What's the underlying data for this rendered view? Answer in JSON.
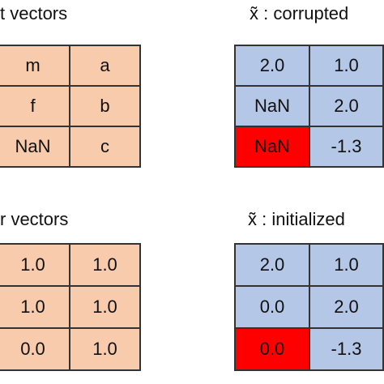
{
  "panels": [
    {
      "title": "t vectors",
      "color": "#f8cbad",
      "highlight_color": "#ff0000",
      "highlight_cell": null,
      "rows": [
        [
          "m",
          "a"
        ],
        [
          "f",
          "b"
        ],
        [
          "NaN",
          "c"
        ]
      ]
    },
    {
      "title": "x̃ : corrupted",
      "color": "#b4c7e7",
      "highlight_color": "#ff0000",
      "highlight_cell": [
        2,
        0
      ],
      "rows": [
        [
          "2.0",
          "1.0"
        ],
        [
          "NaN",
          "2.0"
        ],
        [
          "NaN",
          "-1.3"
        ]
      ]
    },
    {
      "title": "r vectors",
      "color": "#f8cbad",
      "highlight_color": "#ff0000",
      "highlight_cell": null,
      "rows": [
        [
          "1.0",
          "1.0"
        ],
        [
          "1.0",
          "1.0"
        ],
        [
          "0.0",
          "1.0"
        ]
      ]
    },
    {
      "title": "x̃ : initialized",
      "color": "#b4c7e7",
      "highlight_color": "#ff0000",
      "highlight_cell": [
        2,
        0
      ],
      "rows": [
        [
          "2.0",
          "1.0"
        ],
        [
          "0.0",
          "2.0"
        ],
        [
          "0.0",
          "-1.3"
        ]
      ]
    }
  ]
}
